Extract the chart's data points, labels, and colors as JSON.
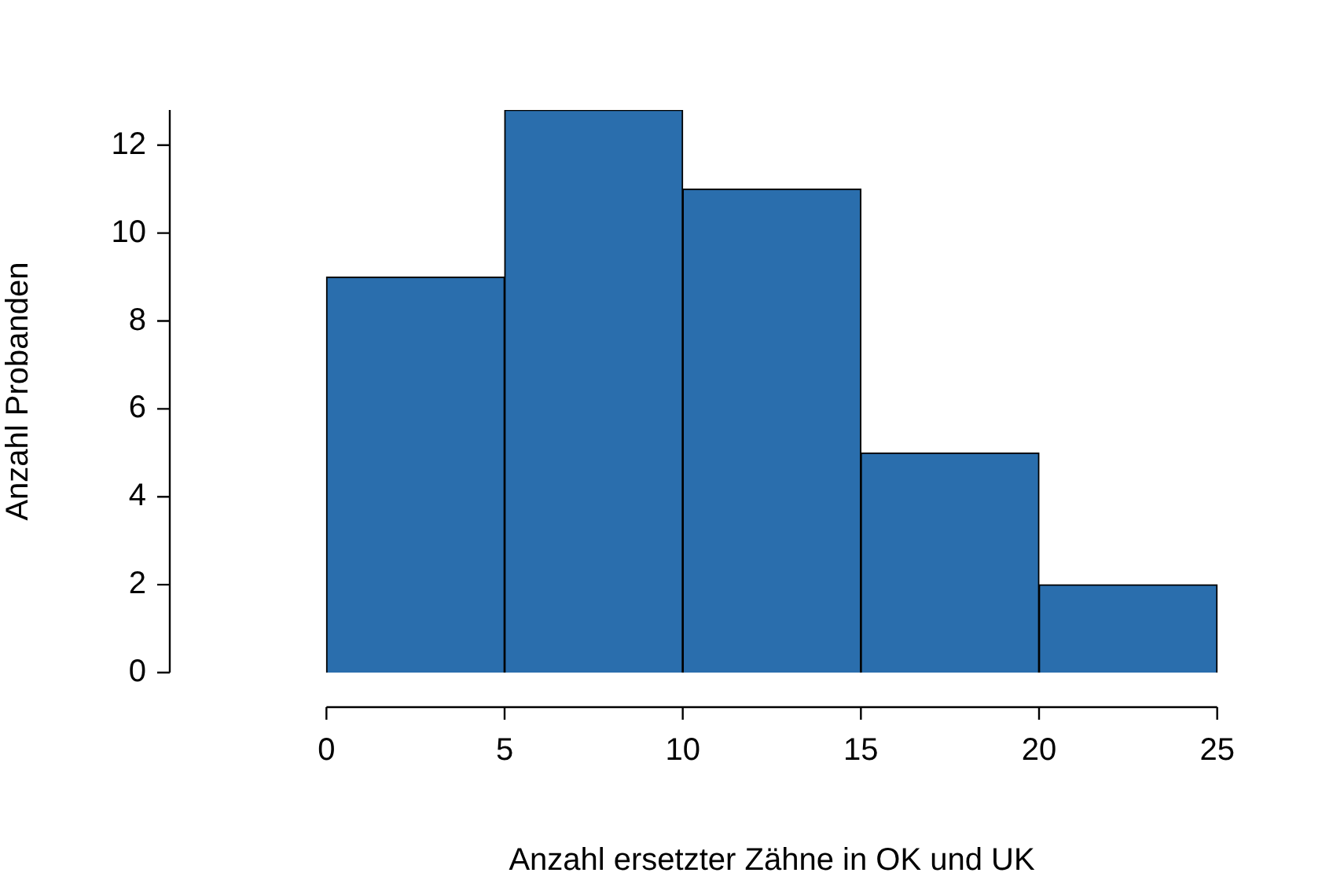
{
  "chart_data": {
    "type": "histogram",
    "xlabel": "Anzahl ersetzter Zähne in OK und UK",
    "ylabel": "Anzahl Probanden",
    "bins": [
      0,
      5,
      10,
      15,
      20,
      25
    ],
    "values": [
      9,
      12.8,
      11,
      5,
      2
    ],
    "color": "#2a6ead",
    "xlim": [
      0,
      25
    ],
    "xticks": [
      0,
      5,
      10,
      15,
      20,
      25
    ],
    "ylim": [
      0,
      12.8
    ],
    "yticks": [
      0,
      2,
      4,
      6,
      8,
      10,
      12
    ],
    "grid": false,
    "legend": false
  }
}
